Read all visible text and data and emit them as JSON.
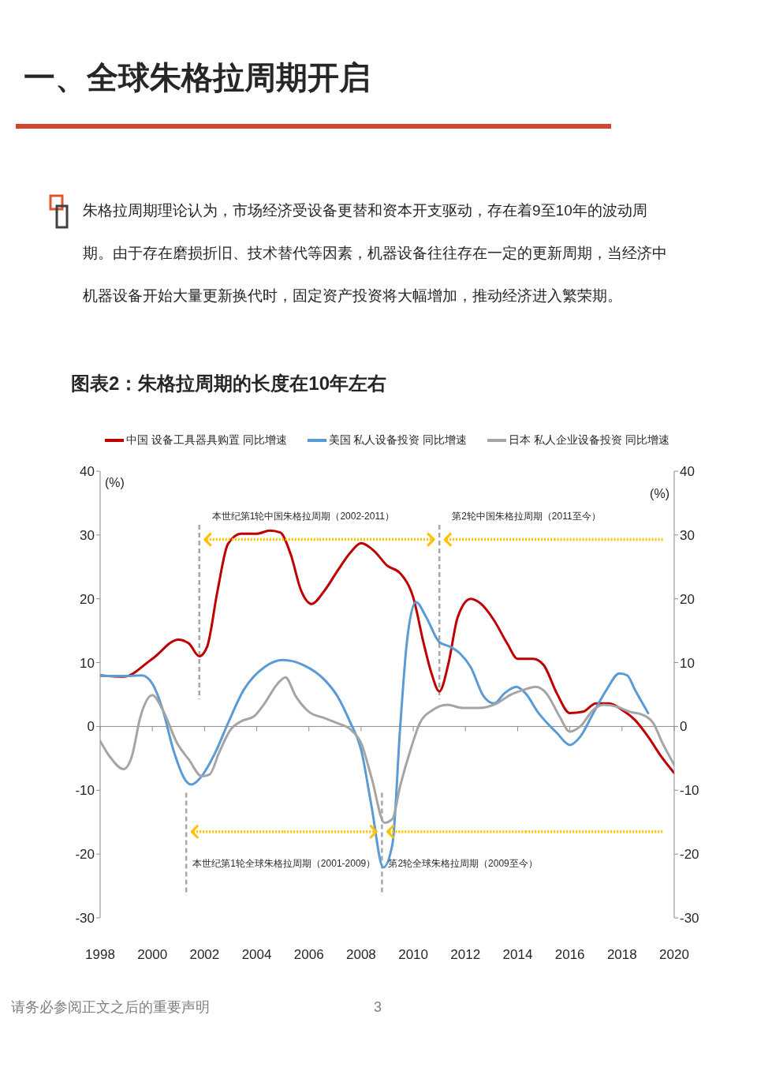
{
  "chart_data": {
    "type": "line",
    "title": "一、全球朱格拉周期开启",
    "subtitle": "图表2：朱格拉周期的长度在10年左右",
    "annotations": [
      "朱格拉周期理论认为，市场经济受设备更替和资本开支驱动，存在着9至10年的波动周期。由于存在磨损折旧、技术替代等因素，机器设备往往存在一定的更新周期，当经济中机器设备开始大量更新换代时，固定资产投资将大幅增加，推动经济进入繁荣期。",
      "请务必参阅正文之后的重要声明",
      "3"
    ],
    "ylabel": "(%)",
    "y2label": "(%)",
    "xlim": [
      1998,
      2020
    ],
    "xticks": [
      1998,
      2000,
      2002,
      2004,
      2006,
      2008,
      2010,
      2012,
      2014,
      2016,
      2018,
      2020
    ],
    "ylim": [
      -30,
      40
    ],
    "yticks": [
      -30,
      -20,
      -10,
      0,
      10,
      20,
      30,
      40
    ],
    "y2lim": [
      -30,
      40
    ],
    "y2ticks": [
      -30,
      -20,
      -10,
      0,
      10,
      20,
      30,
      40
    ],
    "legend": "top",
    "marker": "none",
    "line_style": "solid",
    "series": [
      {
        "name": "中国 设备工具器具购置 同比增速",
        "color": "#c00000",
        "x": [
          1998,
          1998.9,
          2000,
          2001,
          2001.4,
          2001.8,
          2002.1,
          2002.5,
          2002.9,
          2003.4,
          2004,
          2004.5,
          2004.9,
          2005.3,
          2005.7,
          2006.1,
          2006.6,
          2007.1,
          2007.6,
          2008,
          2008.5,
          2009,
          2009.5,
          2010,
          2010.4,
          2010.7,
          2011,
          2011.35,
          2011.7,
          2012.2,
          2012.6,
          2013.1,
          2013.6,
          2014,
          2014.6,
          2015,
          2015.5,
          2016,
          2016.5,
          2017,
          2017.5,
          2018,
          2018.5,
          2019,
          2019.5,
          2020
        ],
        "values": [
          8.0,
          7.8,
          10.6,
          13.6,
          13.0,
          11.0,
          12.5,
          21.3,
          28.6,
          30.2,
          30.2,
          30.7,
          30.4,
          27.0,
          21.3,
          19.2,
          21.3,
          24.4,
          27.3,
          28.7,
          27.5,
          25.2,
          24.0,
          20.2,
          13.0,
          8.3,
          5.5,
          9.9,
          17.1,
          20.0,
          19.2,
          16.6,
          13.0,
          10.6,
          10.6,
          9.6,
          5.2,
          2.1,
          2.3,
          3.6,
          3.6,
          2.6,
          1.0,
          -1.6,
          -4.7,
          -7.3
        ]
      },
      {
        "name": "美国 私人设备投资 同比增速",
        "color": "#5b9bd5",
        "x": [
          1998,
          1998.9,
          1999.6,
          2000,
          2000.4,
          2000.8,
          2001.3,
          2001.5,
          2001.85,
          2002.4,
          2002.9,
          2003.5,
          2004.3,
          2005,
          2005.8,
          2006.6,
          2007.1,
          2007.6,
          2008,
          2008.4,
          2008.85,
          2009.2,
          2009.5,
          2009.75,
          2010.1,
          2010.5,
          2011,
          2011.4,
          2011.8,
          2012.2,
          2012.7,
          2013.1,
          2013.5,
          2013.95,
          2014.3,
          2014.8,
          2015.5,
          2016,
          2016.4,
          2016.9,
          2017.4,
          2017.9,
          2018.2,
          2018.5,
          2019
        ],
        "values": [
          7.9,
          7.9,
          8.0,
          6.7,
          2.6,
          -3.6,
          -8.6,
          -9.1,
          -8.0,
          -4.2,
          0.5,
          5.7,
          9.3,
          10.4,
          9.6,
          7.3,
          4.7,
          0.5,
          -3.6,
          -12.5,
          -22.1,
          -18.5,
          0,
          13.0,
          19.5,
          17.1,
          13.2,
          12.5,
          11.4,
          9.3,
          4.7,
          3.6,
          5.2,
          6.2,
          5.2,
          2.1,
          -1.0,
          -2.9,
          -1.6,
          2.1,
          5.7,
          8.3,
          8.0,
          5.7,
          2.1
        ]
      },
      {
        "name": "日本 私人企业设备投资 同比增速",
        "color": "#a5a5a5",
        "x": [
          1998,
          1998.4,
          1998.9,
          1999.2,
          1999.55,
          2000,
          2000.4,
          2000.95,
          2001.4,
          2001.9,
          2002.2,
          2002.55,
          2003,
          2003.4,
          2003.9,
          2004.3,
          2004.8,
          2005.1,
          2005.5,
          2006,
          2006.6,
          2007.1,
          2007.6,
          2008,
          2008.4,
          2008.9,
          2009.2,
          2009.5,
          2009.9,
          2010.25,
          2010.75,
          2011.3,
          2011.9,
          2012.5,
          2013.2,
          2013.7,
          2014.2,
          2014.7,
          2015.1,
          2015.6,
          2016,
          2016.4,
          2016.9,
          2017.3,
          2017.8,
          2018.3,
          2018.8,
          2019.2,
          2019.55,
          2020
        ],
        "values": [
          -2.3,
          -4.9,
          -6.7,
          -4.9,
          1.6,
          4.9,
          2.6,
          -2.6,
          -5.2,
          -7.8,
          -7.5,
          -4.2,
          -0.5,
          0.8,
          1.6,
          3.6,
          6.7,
          7.7,
          4.7,
          2.3,
          1.3,
          0.5,
          -0.5,
          -2.6,
          -8.0,
          -15.1,
          -14.5,
          -9.3,
          -3.6,
          0.5,
          2.6,
          3.4,
          2.9,
          2.9,
          3.6,
          4.9,
          5.7,
          6.2,
          5.2,
          1.6,
          -0.8,
          0,
          2.6,
          3.4,
          3.1,
          2.3,
          1.8,
          0.5,
          -2.6,
          -6.0
        ]
      }
    ],
    "ref_lines": [
      {
        "axis": "x",
        "value": 2001.8,
        "label": "本世纪第1轮中国朱格拉周期（2002-2011）",
        "color": "#a6a6a6",
        "line_style": "dashed"
      },
      {
        "axis": "x",
        "value": 2011.0,
        "label": "第2轮中国朱格拉周期（2011至今）",
        "color": "#a6a6a6",
        "line_style": "dashed"
      },
      {
        "axis": "x",
        "value": 2001.3,
        "label": "本世纪第1轮全球朱格拉周期（2001-2009）",
        "color": "#a6a6a6",
        "line_style": "dashed"
      },
      {
        "axis": "x",
        "value": 2008.8,
        "label": "第2轮全球朱格拉周期（2009至今）",
        "color": "#a6a6a6",
        "line_style": "dashed"
      }
    ]
  }
}
